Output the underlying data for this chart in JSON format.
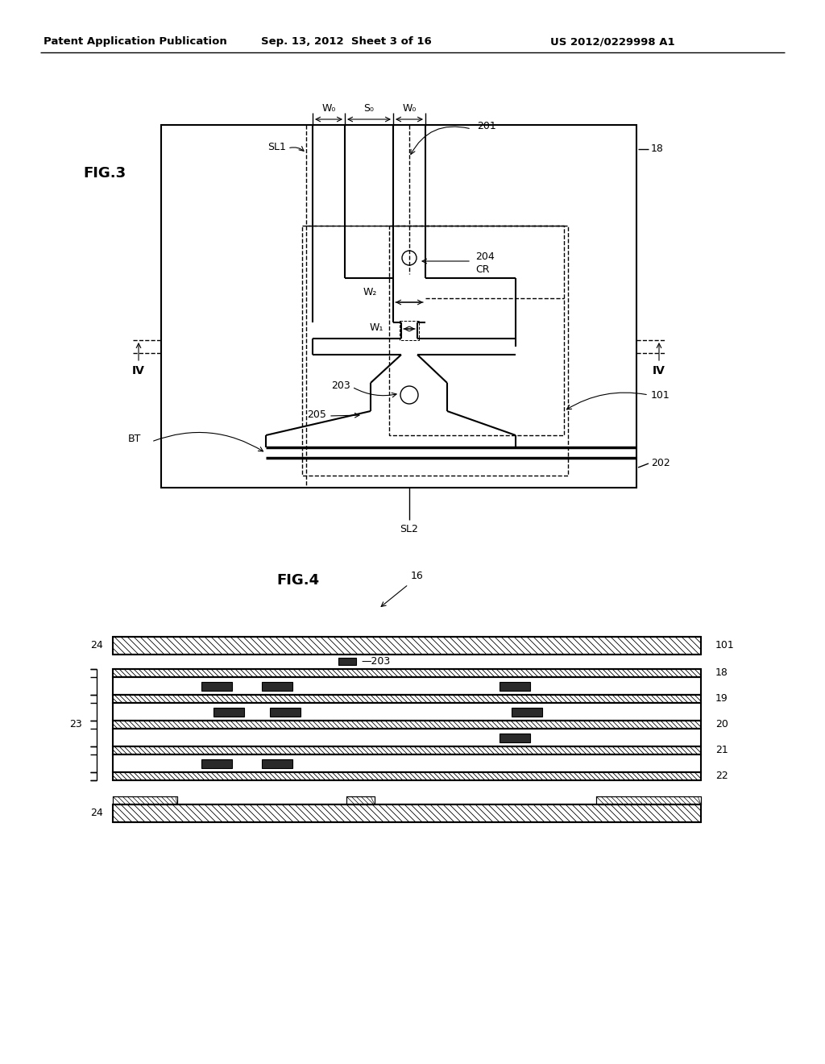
{
  "background_color": "#ffffff",
  "header_text": "Patent Application Publication",
  "header_date": "Sep. 13, 2012  Sheet 3 of 16",
  "header_patent": "US 2012/0229998 A1",
  "fig3_label": "FIG.3",
  "fig4_label": "FIG.4",
  "labels": {
    "W0_left": "W₀",
    "S0": "S₀",
    "W0_right": "W₀",
    "SL1": "SL1",
    "SL2": "SL2",
    "BT": "BT",
    "IV_left": "IV",
    "IV_right": "IV",
    "label_201": "201",
    "label_202": "202",
    "label_203": "203",
    "label_204": "204",
    "label_205": "205",
    "label_CR": "CR",
    "label_W2": "W₂",
    "label_W1": "W₁",
    "label_18": "18",
    "label_101": "101",
    "label_16": "16",
    "label_19": "19",
    "label_20": "20",
    "label_21": "21",
    "label_22": "22",
    "label_23": "23",
    "label_24a": "24",
    "label_24b": "24",
    "label_101b": "101",
    "label_203b": "203"
  }
}
